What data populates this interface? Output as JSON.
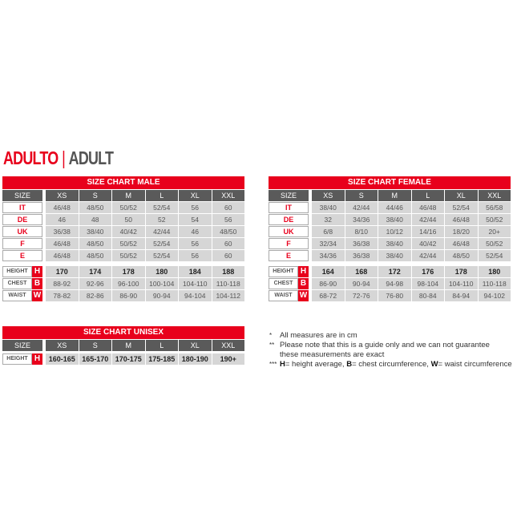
{
  "heading": {
    "primary": "ADULTO",
    "separator": "|",
    "secondary": "ADULT"
  },
  "colors": {
    "accent": "#e8001c",
    "header_gray": "#5a5a5a",
    "cell_gray": "#d6d6d6"
  },
  "charts": {
    "male": {
      "title": "SIZE CHART MALE",
      "size_label": "SIZE",
      "columns": [
        "XS",
        "S",
        "M",
        "L",
        "XL",
        "XXL"
      ],
      "size_rows": [
        {
          "label": "IT",
          "values": [
            "46/48",
            "48/50",
            "50/52",
            "52/54",
            "56",
            "60"
          ]
        },
        {
          "label": "DE",
          "values": [
            "46",
            "48",
            "50",
            "52",
            "54",
            "56"
          ]
        },
        {
          "label": "UK",
          "values": [
            "36/38",
            "38/40",
            "40/42",
            "42/44",
            "46",
            "48/50"
          ]
        },
        {
          "label": "F",
          "values": [
            "46/48",
            "48/50",
            "50/52",
            "52/54",
            "56",
            "60"
          ]
        },
        {
          "label": "E",
          "values": [
            "46/48",
            "48/50",
            "50/52",
            "52/54",
            "56",
            "60"
          ]
        }
      ],
      "measure_rows": [
        {
          "label": "HEIGHT",
          "letter": "H",
          "values": [
            "170",
            "174",
            "178",
            "180",
            "184",
            "188"
          ]
        },
        {
          "label": "CHEST",
          "letter": "B",
          "values": [
            "88-92",
            "92-96",
            "96-100",
            "100-104",
            "104-110",
            "110-118"
          ]
        },
        {
          "label": "WAIST",
          "letter": "W",
          "values": [
            "78-82",
            "82-86",
            "86-90",
            "90-94",
            "94-104",
            "104-112"
          ]
        }
      ]
    },
    "female": {
      "title": "SIZE CHART FEMALE",
      "size_label": "SIZE",
      "columns": [
        "XS",
        "S",
        "M",
        "L",
        "XL",
        "XXL"
      ],
      "size_rows": [
        {
          "label": "IT",
          "values": [
            "38/40",
            "42/44",
            "44/46",
            "46/48",
            "52/54",
            "56/58"
          ]
        },
        {
          "label": "DE",
          "values": [
            "32",
            "34/36",
            "38/40",
            "42/44",
            "46/48",
            "50/52"
          ]
        },
        {
          "label": "UK",
          "values": [
            "6/8",
            "8/10",
            "10/12",
            "14/16",
            "18/20",
            "20+"
          ]
        },
        {
          "label": "F",
          "values": [
            "32/34",
            "36/38",
            "38/40",
            "40/42",
            "46/48",
            "50/52"
          ]
        },
        {
          "label": "E",
          "values": [
            "34/36",
            "36/38",
            "38/40",
            "42/44",
            "48/50",
            "52/54"
          ]
        }
      ],
      "measure_rows": [
        {
          "label": "HEIGHT",
          "letter": "H",
          "values": [
            "164",
            "168",
            "172",
            "176",
            "178",
            "180"
          ]
        },
        {
          "label": "CHEST",
          "letter": "B",
          "values": [
            "86-90",
            "90-94",
            "94-98",
            "98-104",
            "104-110",
            "110-118"
          ]
        },
        {
          "label": "WAIST",
          "letter": "W",
          "values": [
            "68-72",
            "72-76",
            "76-80",
            "80-84",
            "84-94",
            "94-102"
          ]
        }
      ]
    },
    "unisex": {
      "title": "SIZE CHART UNISEX",
      "size_label": "SIZE",
      "columns": [
        "XS",
        "S",
        "M",
        "L",
        "XL",
        "XXL"
      ],
      "size_rows": [],
      "measure_rows": [
        {
          "label": "HEIGHT",
          "letter": "H",
          "values": [
            "160-165",
            "165-170",
            "170-175",
            "175-185",
            "180-190",
            "190+"
          ]
        }
      ]
    }
  },
  "notes": [
    {
      "marker": "*",
      "text": "All measures are in cm"
    },
    {
      "marker": "**",
      "text": "Please note that this is a guide only and we can not guarantee these measurements are exact"
    },
    {
      "marker": "***",
      "parts": [
        {
          "b": "H",
          "t": "= height average, "
        },
        {
          "b": "B",
          "t": "= chest circumference, "
        },
        {
          "b": "W",
          "t": "= waist circumference"
        }
      ]
    }
  ]
}
